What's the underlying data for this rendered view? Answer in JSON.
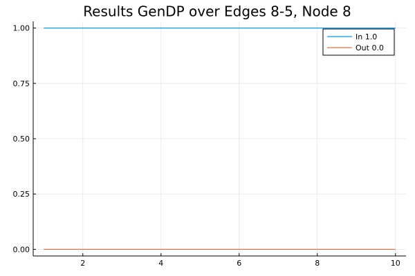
{
  "chart_data": {
    "type": "line",
    "title": "Results GenDP over Edges 8-5,  Node 8",
    "xlabel": "",
    "ylabel": "",
    "xlim": [
      0.73,
      10.27
    ],
    "ylim": [
      -0.03,
      1.03
    ],
    "x_ticks": [
      2,
      4,
      6,
      8,
      10
    ],
    "x_tick_labels": [
      "2",
      "4",
      "6",
      "8",
      "10"
    ],
    "y_ticks": [
      0,
      0.25,
      0.5,
      0.75,
      1.0
    ],
    "y_tick_labels": [
      "0.00",
      "0.25",
      "0.50",
      "0.75",
      "1.00"
    ],
    "grid": true,
    "legend_position": "top-right",
    "series": [
      {
        "name": "In 1.0",
        "color": "#009af9",
        "x": [
          1,
          2,
          3,
          4,
          5,
          6,
          7,
          8,
          9,
          10
        ],
        "values": [
          1,
          1,
          1,
          1,
          1,
          1,
          1,
          1,
          1,
          1
        ]
      },
      {
        "name": "Out 0.0",
        "color": "#e26f46",
        "x": [
          1,
          2,
          3,
          4,
          5,
          6,
          7,
          8,
          9,
          10
        ],
        "values": [
          0,
          0,
          0,
          0,
          0,
          0,
          0,
          0,
          0,
          0
        ]
      }
    ]
  }
}
